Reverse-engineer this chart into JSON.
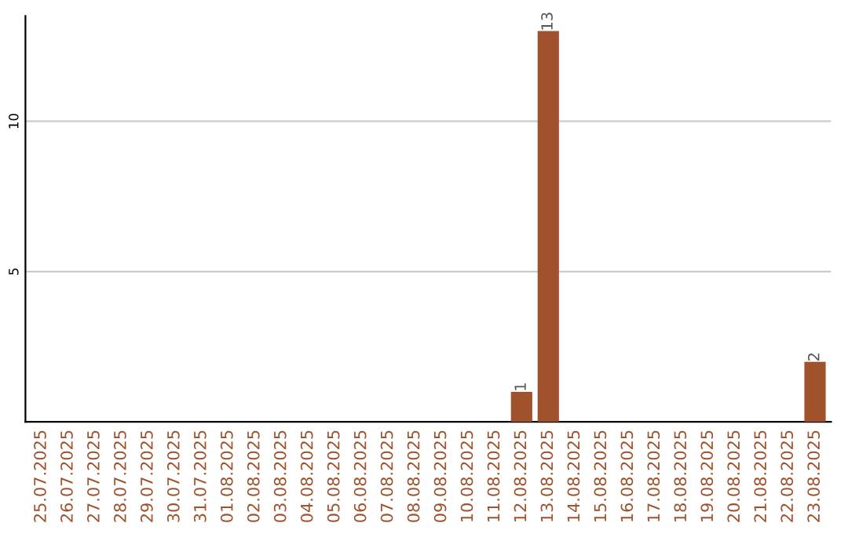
{
  "chart_data": {
    "type": "bar",
    "categories": [
      "25.07.2025",
      "26.07.2025",
      "27.07.2025",
      "28.07.2025",
      "29.07.2025",
      "30.07.2025",
      "31.07.2025",
      "01.08.2025",
      "02.08.2025",
      "03.08.2025",
      "04.08.2025",
      "05.08.2025",
      "06.08.2025",
      "07.08.2025",
      "08.08.2025",
      "09.08.2025",
      "10.08.2025",
      "11.08.2025",
      "12.08.2025",
      "13.08.2025",
      "14.08.2025",
      "15.08.2025",
      "16.08.2025",
      "17.08.2025",
      "18.08.2025",
      "19.08.2025",
      "20.08.2025",
      "21.08.2025",
      "22.08.2025",
      "23.08.2025"
    ],
    "values": [
      0,
      0,
      0,
      0,
      0,
      0,
      0,
      0,
      0,
      0,
      0,
      0,
      0,
      0,
      0,
      0,
      0,
      0,
      1,
      13,
      0,
      0,
      0,
      0,
      0,
      0,
      0,
      0,
      0,
      2
    ],
    "value_labels": [
      null,
      null,
      null,
      null,
      null,
      null,
      null,
      null,
      null,
      null,
      null,
      null,
      null,
      null,
      null,
      null,
      null,
      null,
      "1",
      "13",
      null,
      null,
      null,
      null,
      null,
      null,
      null,
      null,
      null,
      "2"
    ],
    "color": "#a0522d",
    "ylim": [
      0,
      13.5
    ],
    "yticks": [
      5,
      10
    ],
    "grid": "y"
  }
}
